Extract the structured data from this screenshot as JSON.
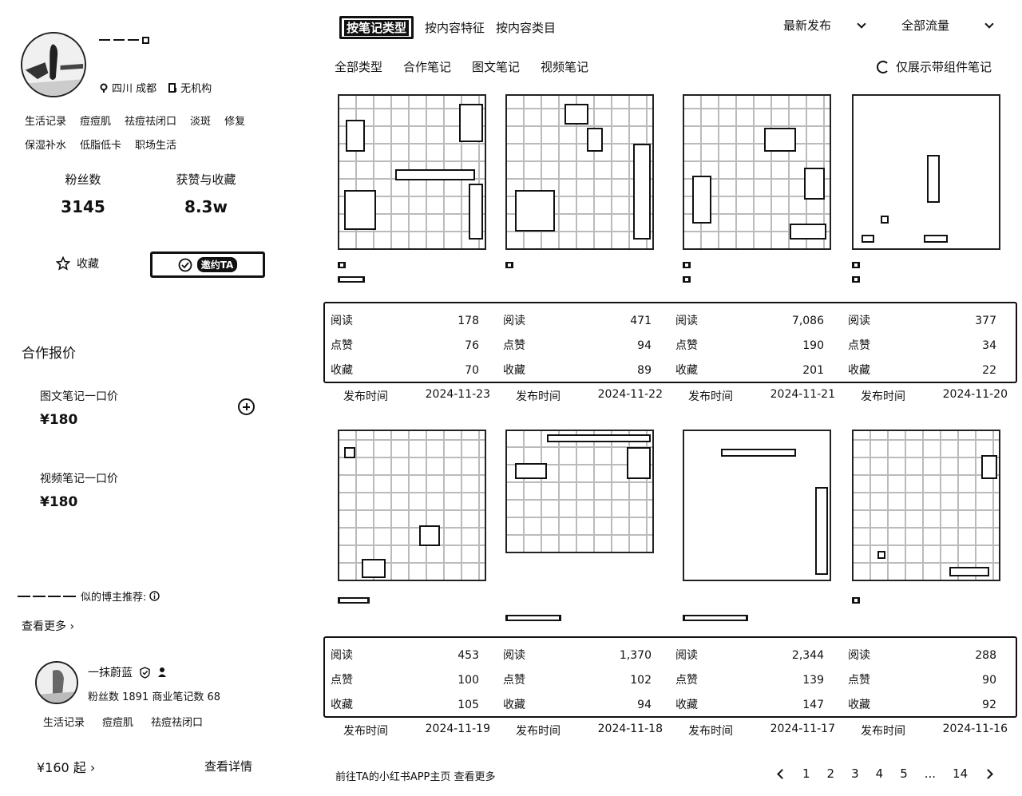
{
  "profile": {
    "location": "四川 成都",
    "org": "无机构",
    "tags_row1": [
      "生活记录",
      "痘痘肌",
      "祛痘祛闭口",
      "淡斑",
      "修复"
    ],
    "tags_row2": [
      "保湿补水",
      "低脂低卡",
      "职场生活"
    ],
    "fans_label": "粉丝数",
    "fans_value": "3145",
    "likes_label": "获赞与收藏",
    "likes_value": "8.3w",
    "fav_label": "收藏",
    "invite_label": "邀约TA"
  },
  "pricing": {
    "title": "合作报价",
    "items": [
      {
        "label": "图文笔记一口价",
        "price": "¥180"
      },
      {
        "label": "视频笔记一口价",
        "price": "¥180"
      }
    ]
  },
  "similar": {
    "title": "似的博主推荐:",
    "see_more": "查看更多 ›",
    "rec": {
      "name": "一抹蔚蓝",
      "stats": "粉丝数 1891  商业笔记数 68",
      "tags": [
        "生活记录",
        "痘痘肌",
        "祛痘祛闭口"
      ],
      "price": "¥160 起 ›",
      "detail": "查看详情"
    }
  },
  "tabs": {
    "active": "按笔记类型",
    "others": [
      "按内容特征",
      "按内容类目"
    ],
    "sort": "最新发布",
    "traffic": "全部流量",
    "sub": [
      "全部类型",
      "合作笔记",
      "图文笔记",
      "视频笔记"
    ],
    "toggle_label": "仅展示带组件笔记"
  },
  "labels": {
    "read": "阅读",
    "like": "点赞",
    "fav": "收藏",
    "date": "发布时间"
  },
  "notes": [
    {
      "read": "178",
      "like": "76",
      "fav": "70",
      "date": "2024-11-23"
    },
    {
      "read": "471",
      "like": "94",
      "fav": "89",
      "date": "2024-11-22"
    },
    {
      "read": "7,086",
      "like": "190",
      "fav": "201",
      "date": "2024-11-21"
    },
    {
      "read": "377",
      "like": "34",
      "fav": "22",
      "date": "2024-11-20"
    },
    {
      "read": "453",
      "like": "100",
      "fav": "105",
      "date": "2024-11-19"
    },
    {
      "read": "1,370",
      "like": "102",
      "fav": "94",
      "date": "2024-11-18"
    },
    {
      "read": "2,344",
      "like": "139",
      "fav": "147",
      "date": "2024-11-17"
    },
    {
      "read": "288",
      "like": "90",
      "fav": "92",
      "date": "2024-11-16"
    }
  ],
  "footer": {
    "link": "前往TA的小红书APP主页 查看更多",
    "pages": [
      "1",
      "2",
      "3",
      "4",
      "5",
      "...",
      "14"
    ]
  }
}
